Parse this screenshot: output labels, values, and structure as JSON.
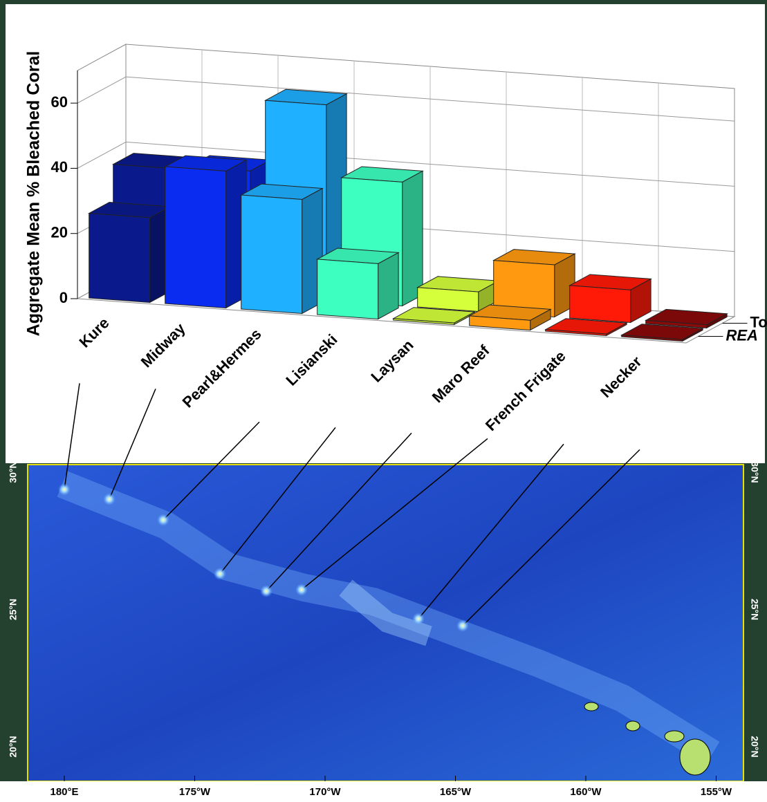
{
  "chart_data": {
    "type": "bar3d",
    "y_label": "Aggregate Mean % Bleached Coral",
    "categories": [
      "Kure",
      "Midway",
      "Pearl&Hermes",
      "Lisianski",
      "Laysan",
      "Maro Reef",
      "French Frigate",
      "Necker"
    ],
    "colors": [
      "#0a1a8c",
      "#0a2cf0",
      "#1fb0ff",
      "#3dffc0",
      "#d4ff3a",
      "#ff9a10",
      "#ff1a08",
      "#8a0a0a"
    ],
    "series": [
      {
        "name": "Tow",
        "values": [
          37,
          38,
          60,
          38,
          6,
          16,
          10,
          1
        ]
      },
      {
        "name": "REA",
        "values": [
          26,
          42,
          35,
          17,
          0.5,
          3,
          0.5,
          0.5
        ]
      }
    ],
    "ylim": [
      0,
      70
    ],
    "yticks": [
      0,
      20,
      40,
      60
    ],
    "grid": true
  },
  "map": {
    "lon_labels": [
      "180°E",
      "175°W",
      "170°W",
      "165°W",
      "160°W",
      "155°W"
    ],
    "lat_labels": [
      "20°N",
      "25°N",
      "30°N"
    ]
  }
}
